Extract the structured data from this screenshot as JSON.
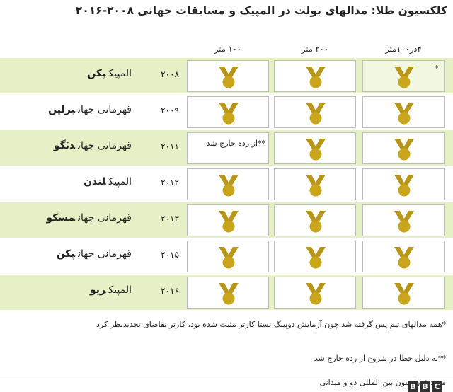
{
  "title": "کلکسیون طلا: مدالهای بولت در المپیک و مسابقات جهانی ۲۰۰۸-۲۰۱۶",
  "columns": [
    "۱۰۰ متر",
    "۲۰۰ متر",
    "۴در۱۰۰متر"
  ],
  "rows": [
    {
      "event": "المپیک",
      "city": "پکن",
      "year": "۲۰۰۸",
      "cells": [
        {
          "medal": true
        },
        {
          "medal": true
        },
        {
          "medal": true,
          "note": "*"
        }
      ]
    },
    {
      "event": "قهرمانی جهان",
      "city": "برلین",
      "year": "۲۰۰۹",
      "cells": [
        {
          "medal": true
        },
        {
          "medal": true
        },
        {
          "medal": true
        }
      ]
    },
    {
      "event": "قهرمانی جهان",
      "city": "دئگو",
      "year": "۲۰۱۱",
      "cells": [
        {
          "medal": false,
          "note": "**از رده خارج شد"
        },
        {
          "medal": true
        },
        {
          "medal": true
        }
      ]
    },
    {
      "event": "المپیک",
      "city": "لندن",
      "year": "۲۰۱۲",
      "cells": [
        {
          "medal": true
        },
        {
          "medal": true
        },
        {
          "medal": true
        }
      ]
    },
    {
      "event": "قهرمانی جهان",
      "city": "مسکو",
      "year": "۲۰۱۳",
      "cells": [
        {
          "medal": true
        },
        {
          "medal": true
        },
        {
          "medal": true
        }
      ]
    },
    {
      "event": "قهرمانی جهان",
      "city": "پکن",
      "year": "۲۰۱۵",
      "cells": [
        {
          "medal": true
        },
        {
          "medal": true
        },
        {
          "medal": true
        }
      ]
    },
    {
      "event": "المپیک",
      "city": "ریو",
      "year": "۲۰۱۶",
      "cells": [
        {
          "medal": true
        },
        {
          "medal": true
        },
        {
          "medal": true
        }
      ]
    }
  ],
  "footnotes": [
    "*همه مدالهای تیم پس گرفته شد چون آزمایش دوپینگ نستا کارتر مثبت شده بود، کارتر تقاضای تجدیدنظر کرد",
    "**به دلیل خطا در شروع از رده خارج شد"
  ],
  "source": "منبع: فدراسیون بین المللی دو و میدانی",
  "logo": [
    "B",
    "B",
    "C"
  ]
}
